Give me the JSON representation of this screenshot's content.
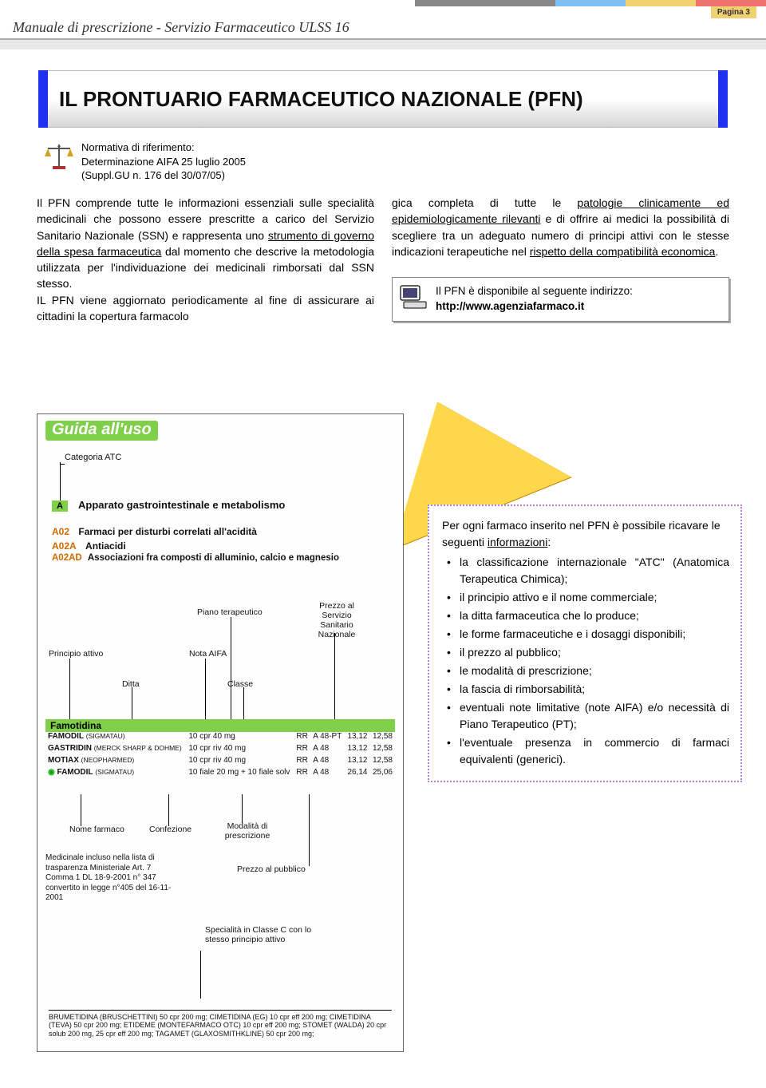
{
  "page_label": "Pagina 3",
  "manual_title": "Manuale di prescrizione - Servizio Farmaceutico ULSS 16",
  "main_title": "IL PRONTUARIO FARMACEUTICO NAZIONALE (PFN)",
  "accent_colors": [
    "#80c0f0",
    "#f0d070",
    "#f07070",
    "#888888"
  ],
  "normativa": {
    "line1": "Normativa di riferimento:",
    "line2": "Determinazione AIFA 25 luglio 2005",
    "line3": "(Suppl.GU n. 176 del 30/07/05)"
  },
  "body_left": {
    "p1a": "Il PFN comprende tutte le informazioni essenziali sulle specialità medicinali che possono essere prescritte a carico del Servizio Sanitario Nazionale (SSN) e rappresenta uno ",
    "p1u1": "strumento di governo della spesa farmaceutica",
    "p1b": " dal momento che descrive la metodologia utilizzata per l'individuazione dei medicinali rimborsati dal SSN stesso.",
    "p2": "IL PFN viene aggiornato periodicamente al fine di assicurare ai cittadini la copertura farmacolo"
  },
  "body_right": {
    "p1a": "gica completa di tutte le ",
    "p1u1": "patologie clinicamente ed epidemiologicamente rilevanti",
    "p1b": " e di offrire ai medici la possibilità di scegliere tra un adeguato numero di principi attivi con le stesse indicazioni terapeutiche nel ",
    "p1u2": "rispetto della compatibilità economica",
    "p1c": ".",
    "link_text": "Il PFN è disponibile al seguente indirizzo:",
    "link_url": "http://www.agenziafarmaco.it"
  },
  "guide": {
    "title": "Guida all'uso",
    "cat_label": "Categoria ATC",
    "letter": "A",
    "cat_name": "Apparato gastrointestinale e metabolismo",
    "a02": "A02",
    "a02_txt": "Farmaci per disturbi correlati all'acidità",
    "a02a": "A02A",
    "a02a_txt": "Antiacidi",
    "a02ad": "A02AD",
    "a02ad_txt": "Associazioni fra composti di alluminio, calcio e magnesio",
    "labels": {
      "principio": "Principio attivo",
      "ditta": "Ditta",
      "piano": "Piano terapeutico",
      "nota": "Nota AIFA",
      "classe": "Classe",
      "prezzo_ssn": "Prezzo al Servizio Sanitario Nazionale",
      "nome": "Nome farmaco",
      "confezione": "Confezione",
      "modalita": "Modalità di prescrizione",
      "prezzo_pub": "Prezzo al pubblico",
      "medicinale_note": "Medicinale incluso nella lista di trasparenza Ministeriale Art. 7 Comma 1 DL 18-9-2001 n° 347 convertito in legge n°405 del 16-11-2001",
      "spec_c": "Specialità in Classe C con lo stesso principio attivo"
    },
    "drug_header": "Famotidina",
    "rows": [
      {
        "name": "FAMODIL",
        "brand": "(SIGMATAU)",
        "conf": "10 cpr 40 mg",
        "mod": "RR",
        "cls": "A 48-PT",
        "p1": "13,12",
        "p2": "12,58"
      },
      {
        "name": "GASTRIDIN",
        "brand": "(MERCK SHARP & DOHME)",
        "conf": "10 cpr riv 40 mg",
        "mod": "RR",
        "cls": "A 48",
        "p1": "13,12",
        "p2": "12,58"
      },
      {
        "name": "MOTIAX",
        "brand": "(NEOPHARMED)",
        "conf": "10 cpr riv 40 mg",
        "mod": "RR",
        "cls": "A 48",
        "p1": "13,12",
        "p2": "12,58"
      },
      {
        "name": "FAMODIL",
        "brand": "(SIGMATAU)",
        "conf": "10 fiale 20 mg + 10 fiale solv",
        "mod": "RR",
        "cls": "A 48",
        "p1": "26,14",
        "p2": "25,06"
      }
    ],
    "footnote": "BRUMETIDINA (BRUSCHETTINI) 50 cpr 200 mg; CIMETIDINA (EG) 10 cpr eff 200 mg; CIMETIDINA (TEVA) 50 cpr 200 mg; ETIDEME (MONTEFARMACO OTC) 10 cpr eff 200 mg; STOMET (WALDA) 20 cpr solub 200 mg, 25 cpr eff 200 mg; TAGAMET (GLAXOSMITHKLINE) 50 cpr 200 mg;"
  },
  "info_box": {
    "intro_a": "Per ogni farmaco inserito nel PFN è possibile ricavare le seguenti ",
    "intro_u": "informazioni",
    "intro_b": ":",
    "items": [
      "la classificazione internazionale \"ATC\" (Anatomica Terapeutica Chimica);",
      "il principio attivo e il nome commerciale;",
      "la ditta farmaceutica che lo produce;",
      "le forme farmaceutiche e i dosaggi disponibili;",
      "il prezzo al pubblico;",
      "le modalità di prescrizione;",
      "la fascia di rimborsabilità;",
      "eventuali note limitative (note AIFA) e/o necessità di Piano Terapeutico (PT);",
      "l'eventuale presenza in commercio di farmaci equivalenti (generici)."
    ]
  },
  "colors": {
    "blue_bar": "#2030f0",
    "green": "#7fcf4a",
    "triangle": "#ffd74a",
    "dot_border": "#b77fd4"
  }
}
